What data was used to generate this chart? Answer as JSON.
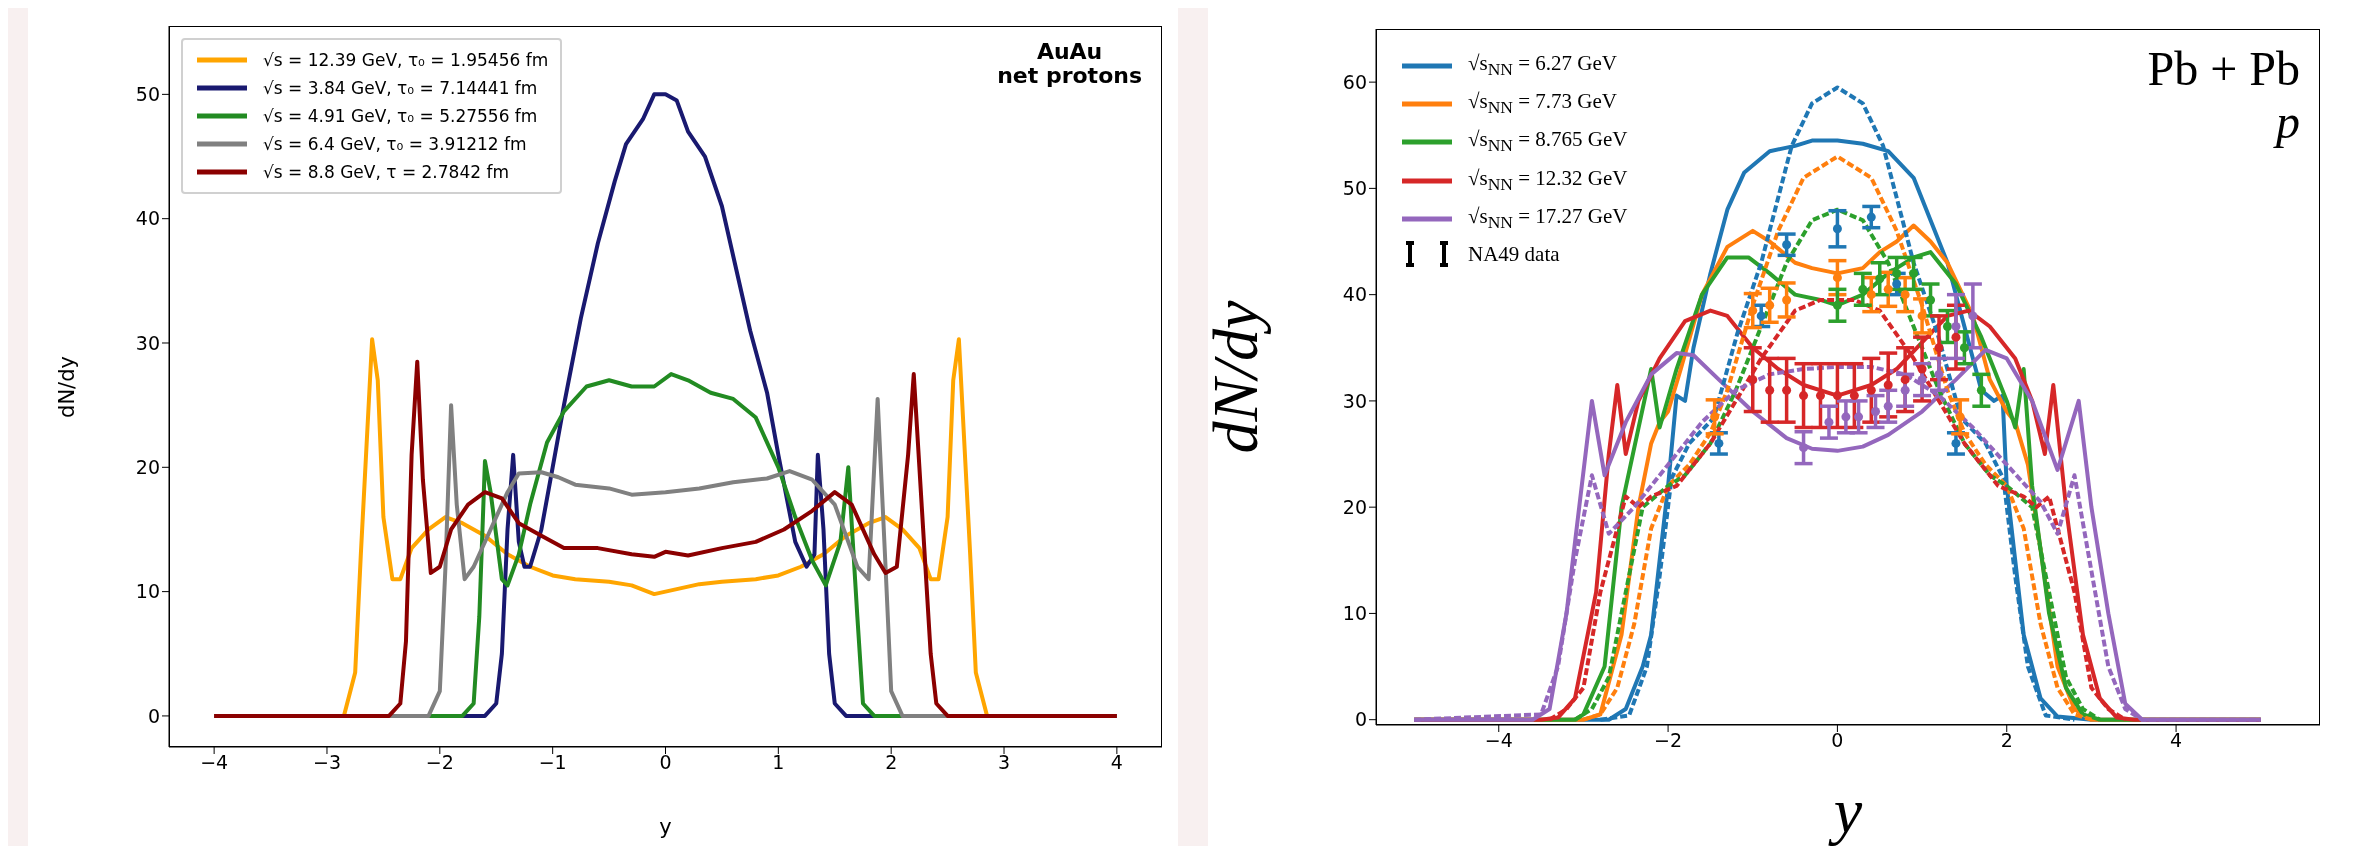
{
  "chart_data": [
    {
      "type": "line",
      "xlabel": "y",
      "ylabel": "dN/dy",
      "xlim": [
        -4.4,
        4.4
      ],
      "ylim": [
        -2.5,
        55.5
      ],
      "xticks": [
        -4,
        -3,
        -2,
        -1,
        0,
        1,
        2,
        3,
        4
      ],
      "yticks": [
        0,
        10,
        20,
        30,
        40,
        50
      ],
      "grid": false,
      "legend": "top left",
      "marker": "none",
      "line_style": "solid",
      "annotations": [
        "AuAu",
        "net protons"
      ],
      "series": [
        {
          "name": "√s = 12.39 GeV, τ₀ = 1.95456 fm",
          "color": "#ffa500",
          "x": [
            -4,
            -2.85,
            -2.75,
            -2.7,
            -2.6,
            -2.55,
            -2.5,
            -2.42,
            -2.35,
            -2.25,
            -2.1,
            -1.95,
            -1.8,
            -1.6,
            -1.4,
            -1.2,
            -1.0,
            -0.8,
            -0.5,
            -0.3,
            -0.1,
            0,
            0.1,
            0.3,
            0.5,
            0.8,
            1.0,
            1.2,
            1.4,
            1.6,
            1.8,
            1.95,
            2.1,
            2.25,
            2.35,
            2.42,
            2.5,
            2.55,
            2.6,
            2.7,
            2.75,
            2.85,
            4
          ],
          "values": [
            0,
            0,
            3.5,
            13,
            30.3,
            27,
            16,
            11,
            11,
            13.5,
            15,
            16,
            15.5,
            14.5,
            13,
            12,
            11.3,
            11,
            10.8,
            10.5,
            9.8,
            10,
            10.2,
            10.6,
            10.8,
            11,
            11.3,
            12,
            13,
            14.5,
            15.5,
            16,
            15,
            13.5,
            11,
            11,
            16,
            27,
            30.3,
            13,
            3.5,
            0,
            0
          ]
        },
        {
          "name": "√s = 3.84 GeV, τ₀ = 7.14441 fm",
          "color": "#191970",
          "x": [
            -4,
            -1.6,
            -1.5,
            -1.45,
            -1.4,
            -1.35,
            -1.3,
            -1.25,
            -1.2,
            -1.1,
            -1.0,
            -0.9,
            -0.75,
            -0.6,
            -0.45,
            -0.35,
            -0.2,
            -0.1,
            0,
            0.1,
            0.2,
            0.35,
            0.5,
            0.6,
            0.75,
            0.9,
            1.0,
            1.15,
            1.25,
            1.32,
            1.35,
            1.4,
            1.45,
            1.5,
            1.6,
            4
          ],
          "values": [
            0,
            0,
            1,
            5,
            15,
            21,
            14,
            12,
            12,
            15,
            20,
            25,
            32,
            38,
            43,
            46,
            48,
            50,
            50,
            49.5,
            47,
            45,
            41,
            37,
            31,
            26,
            21,
            14,
            12,
            13,
            21,
            15,
            5,
            1,
            0,
            0
          ]
        },
        {
          "name": "√s = 4.91 GeV, τ₀ = 5.27556 fm",
          "color": "#228b22",
          "x": [
            -4,
            -1.8,
            -1.7,
            -1.65,
            -1.6,
            -1.55,
            -1.45,
            -1.4,
            -1.3,
            -1.2,
            -1.05,
            -0.9,
            -0.7,
            -0.5,
            -0.3,
            -0.1,
            0.05,
            0.2,
            0.4,
            0.6,
            0.8,
            1.0,
            1.15,
            1.3,
            1.42,
            1.55,
            1.62,
            1.7,
            1.75,
            1.85,
            4
          ],
          "values": [
            0,
            0,
            1,
            8,
            20.5,
            18,
            11,
            10.5,
            13,
            17,
            22,
            24.5,
            26.5,
            27,
            26.5,
            26.5,
            27.5,
            27,
            26,
            25.5,
            24,
            20,
            16,
            12.5,
            10.5,
            14,
            20,
            8,
            1,
            0,
            0
          ]
        },
        {
          "name": "√s = 6.4 GeV, τ₀ = 3.91212 fm",
          "color": "#808080",
          "x": [
            -4,
            -2.1,
            -2.0,
            -1.95,
            -1.9,
            -1.85,
            -1.78,
            -1.7,
            -1.55,
            -1.4,
            -1.3,
            -1.1,
            -0.95,
            -0.8,
            -0.5,
            -0.3,
            0,
            0.3,
            0.6,
            0.9,
            1.1,
            1.3,
            1.5,
            1.7,
            1.8,
            1.88,
            1.95,
            2.0,
            2.1,
            4
          ],
          "values": [
            0,
            0,
            2,
            12,
            25,
            17,
            11,
            12,
            15,
            18,
            19.5,
            19.6,
            19.2,
            18.6,
            18.3,
            17.8,
            18,
            18.3,
            18.8,
            19.1,
            19.7,
            19,
            17,
            12,
            11,
            25.5,
            12,
            2,
            0,
            0
          ]
        },
        {
          "name": "√s = 8.8 GeV, τ = 2.7842 fm",
          "color": "#8b0000",
          "x": [
            -4,
            -2.45,
            -2.35,
            -2.3,
            -2.25,
            -2.2,
            -2.15,
            -2.08,
            -2.0,
            -1.9,
            -1.75,
            -1.6,
            -1.45,
            -1.3,
            -1.1,
            -0.9,
            -0.6,
            -0.3,
            -0.1,
            0,
            0.2,
            0.5,
            0.8,
            1.05,
            1.3,
            1.5,
            1.65,
            1.85,
            1.95,
            2.05,
            2.15,
            2.2,
            2.25,
            2.35,
            2.4,
            2.5,
            4
          ],
          "values": [
            0,
            0,
            1,
            6,
            21,
            28.5,
            19,
            11.5,
            12,
            15,
            17,
            18,
            17.5,
            15.5,
            14.5,
            13.5,
            13.5,
            13,
            12.8,
            13.2,
            12.9,
            13.5,
            14,
            15,
            16.5,
            18,
            17,
            13,
            11.5,
            12,
            21,
            27.5,
            20,
            5,
            1,
            0,
            0
          ]
        }
      ]
    },
    {
      "type": "line",
      "xlabel": "y",
      "ylabel": "dN/dy",
      "xlim": [
        -5.45,
        5.7
      ],
      "ylim": [
        -0.5,
        65
      ],
      "xticks": [
        -4,
        -2,
        0,
        2,
        4
      ],
      "yticks": [
        0,
        10,
        20,
        30,
        40,
        50,
        60
      ],
      "grid": false,
      "legend": "top left",
      "marker": "none",
      "line_style": "solid",
      "annotations": [
        "Pb + Pb",
        "p",
        "NA49 data"
      ],
      "series": [
        {
          "name": "√s$_{NN}$ = 6.27 GeV",
          "color": "#1f77b4",
          "x": [
            -5,
            -2.7,
            -2.5,
            -2.3,
            -2.2,
            -2.0,
            -1.9,
            -1.8,
            -1.7,
            -1.5,
            -1.3,
            -1.1,
            -0.8,
            -0.5,
            -0.3,
            0,
            0.3,
            0.6,
            0.9,
            1.1,
            1.3,
            1.5,
            1.7,
            1.85,
            1.95,
            2.0,
            2.2,
            2.4,
            2.6,
            3,
            5
          ],
          "values": [
            0,
            0,
            1,
            5,
            8,
            22,
            30.5,
            30,
            35,
            42,
            48,
            51.5,
            53.5,
            54,
            54.5,
            54.5,
            54.2,
            53.5,
            51,
            47,
            43,
            37,
            31,
            30,
            30.5,
            22,
            8,
            2,
            0.3,
            0,
            0
          ]
        },
        {
          "name": "√s$_{NN}$ = 7.73 GeV",
          "color": "#ff7f0e",
          "x": [
            -5,
            -3.0,
            -2.8,
            -2.55,
            -2.35,
            -2.2,
            -2.1,
            -2.0,
            -1.85,
            -1.6,
            -1.3,
            -1.0,
            -0.8,
            -0.5,
            -0.3,
            0,
            0.3,
            0.5,
            0.7,
            0.9,
            1.1,
            1.3,
            1.6,
            1.8,
            2.0,
            2.1,
            2.25,
            2.4,
            2.6,
            2.8,
            3.0,
            5
          ],
          "values": [
            0,
            0,
            0.5,
            8,
            20,
            26,
            28,
            29,
            33,
            40,
            44.5,
            46,
            45,
            43,
            42.5,
            42,
            42.5,
            44,
            45,
            46.5,
            45,
            43,
            38,
            32,
            29,
            28,
            24,
            16,
            5,
            1,
            0,
            0
          ]
        },
        {
          "name": "√s$_{NN}$ = 8.765 GeV",
          "color": "#2ca02c",
          "x": [
            -5,
            -3.1,
            -3.0,
            -2.75,
            -2.55,
            -2.2,
            -2.1,
            -1.9,
            -1.6,
            -1.3,
            -1.05,
            -0.8,
            -0.5,
            -0.2,
            0,
            0.3,
            0.6,
            0.9,
            1.1,
            1.4,
            1.7,
            2.0,
            2.1,
            2.2,
            2.3,
            2.5,
            2.7,
            2.9,
            3.1,
            5
          ],
          "values": [
            0,
            0,
            0.5,
            5,
            20,
            33,
            27.5,
            33,
            40,
            43.5,
            43.5,
            42,
            40,
            39.5,
            39,
            40,
            42,
            43.5,
            44,
            41,
            36,
            30,
            27.5,
            33,
            22,
            10,
            3,
            0.5,
            0,
            0
          ]
        },
        {
          "name": "√s$_{NN}$ = 12.32 GeV",
          "color": "#d62728",
          "x": [
            -5,
            -3.5,
            -3.3,
            -3.1,
            -2.85,
            -2.7,
            -2.6,
            -2.5,
            -2.35,
            -2.1,
            -1.8,
            -1.5,
            -1.3,
            -1.0,
            -0.7,
            -0.4,
            0,
            0.4,
            0.7,
            1.0,
            1.3,
            1.55,
            1.8,
            2.1,
            2.3,
            2.45,
            2.55,
            2.7,
            2.9,
            3.1,
            3.3,
            3.5,
            5
          ],
          "values": [
            0,
            0,
            0.2,
            2,
            12,
            25,
            31.5,
            25,
            30,
            34,
            37.5,
            38.5,
            38,
            35,
            33,
            31.5,
            30.5,
            31.5,
            33,
            35.5,
            38,
            38.5,
            37,
            34,
            30,
            25,
            31.5,
            20,
            8,
            2,
            0.2,
            0,
            0
          ]
        },
        {
          "name": "√s$_{NN}$ = 17.27 GeV",
          "color": "#9467bd",
          "x": [
            -5,
            -3.6,
            -3.4,
            -3.2,
            -3.05,
            -2.9,
            -2.75,
            -2.5,
            -2.2,
            -1.9,
            -1.7,
            -1.4,
            -1.0,
            -0.6,
            -0.3,
            0,
            0.3,
            0.6,
            1.0,
            1.4,
            1.75,
            2.0,
            2.3,
            2.6,
            2.85,
            3.0,
            3.2,
            3.4,
            3.6,
            5
          ],
          "values": [
            0,
            0,
            1,
            10,
            20,
            30,
            23,
            28,
            32.5,
            34.5,
            34.3,
            32,
            29,
            26.5,
            25.5,
            25.3,
            25.7,
            26.8,
            29,
            32,
            34.8,
            34,
            30,
            23.5,
            30,
            20,
            10,
            1.5,
            0,
            0
          ]
        },
        {
          "color": "#1f77b4",
          "line_style": "dashed",
          "x": [
            -2.8,
            -2.46,
            -2.25,
            -2.1,
            -1.96,
            -1.75,
            -1.46,
            -1.18,
            -0.9,
            -0.54,
            -0.3,
            0,
            0.3,
            0.54,
            0.9,
            1.18,
            1.46,
            1.75,
            1.96,
            2.1,
            2.25,
            2.46,
            2.8
          ],
          "values": [
            0,
            0.4,
            5,
            13.5,
            22.7,
            26,
            28.4,
            36.4,
            43,
            54,
            58,
            59.5,
            58,
            54,
            43,
            36.4,
            28.4,
            26,
            22.7,
            13.5,
            5,
            0.4,
            0
          ]
        },
        {
          "color": "#ff7f0e",
          "line_style": "dashed",
          "x": [
            -3,
            -2.8,
            -2.6,
            -2.4,
            -2.2,
            -2.0,
            -1.75,
            -1.5,
            -1.3,
            -1.0,
            -0.7,
            -0.4,
            0,
            0.4,
            0.7,
            1.0,
            1.3,
            1.5,
            1.75,
            2.0,
            2.2,
            2.4,
            2.6,
            2.8,
            3
          ],
          "values": [
            0,
            0.5,
            3,
            9,
            18,
            22,
            24,
            27,
            31,
            39,
            46,
            51,
            53,
            51,
            46,
            39,
            31,
            27,
            24,
            22,
            18,
            9,
            3,
            0.5,
            0
          ]
        },
        {
          "color": "#2ca02c",
          "line_style": "dashed",
          "x": [
            -3.1,
            -2.9,
            -2.7,
            -2.5,
            -2.3,
            -2.0,
            -1.8,
            -1.5,
            -1.2,
            -0.9,
            -0.6,
            -0.3,
            0,
            0.3,
            0.6,
            0.9,
            1.2,
            1.5,
            1.8,
            2.0,
            2.3,
            2.5,
            2.7,
            2.9,
            3.1
          ],
          "values": [
            0,
            1,
            4,
            12,
            20,
            22,
            23,
            26,
            31,
            37,
            43,
            47,
            48,
            47,
            43,
            37,
            31,
            26,
            23,
            22,
            20,
            12,
            4,
            1,
            0
          ]
        },
        {
          "color": "#d62728",
          "line_style": "dashed",
          "x": [
            -3.4,
            -3.2,
            -3.0,
            -2.8,
            -2.5,
            -2.35,
            -2.2,
            -1.9,
            -1.5,
            -1.2,
            -0.9,
            -0.5,
            -0.2,
            0,
            0.2,
            0.5,
            0.9,
            1.2,
            1.5,
            1.9,
            2.2,
            2.35,
            2.5,
            2.8,
            3.0,
            3.2,
            3.4
          ],
          "values": [
            0,
            1,
            3,
            12,
            21,
            20,
            21,
            22,
            26,
            30,
            34,
            38.5,
            39.5,
            39.5,
            39.5,
            38.5,
            34,
            30,
            26,
            22,
            21,
            20,
            21,
            12,
            3,
            1,
            0
          ]
        },
        {
          "color": "#9467bd",
          "line_style": "dashed",
          "x": [
            -5,
            -3.5,
            -3.3,
            -3.1,
            -2.9,
            -2.7,
            -2.4,
            -2.0,
            -1.6,
            -1.2,
            -0.8,
            -0.4,
            0,
            0.4,
            0.8,
            1.2,
            1.6,
            2.0,
            2.4,
            2.6,
            2.8,
            3.0,
            3.2,
            3.4,
            3.6,
            5
          ],
          "values": [
            0,
            0.5,
            5,
            15,
            23,
            17.5,
            20,
            24,
            28,
            31,
            32.5,
            33,
            33.2,
            33.2,
            32.5,
            30.5,
            27.5,
            24,
            20.5,
            17.5,
            23,
            14,
            5,
            1,
            0,
            0
          ]
        },
        {
          "type": "scatter",
          "color": "#1f77b4",
          "marker": "circle",
          "x": [
            -1.4,
            -0.9,
            -0.6,
            0,
            0.4,
            0.7,
            1.4
          ],
          "values": [
            26,
            38,
            44.7,
            46.2,
            47.3,
            41,
            26
          ],
          "errors": [
            1,
            1,
            1,
            1.7,
            1,
            1,
            1
          ]
        },
        {
          "type": "scatter",
          "color": "#ff7f0e",
          "marker": "circle",
          "x": [
            -1.45,
            -1.0,
            -0.8,
            -0.6,
            0,
            0.4,
            0.6,
            0.8,
            1.0,
            1.45
          ],
          "values": [
            28.5,
            38.5,
            39,
            39.5,
            41.6,
            40,
            40.5,
            40,
            38,
            28.5
          ],
          "errors": [
            1.6,
            1.6,
            1.6,
            1.6,
            1.6,
            1.6,
            1.6,
            1.6,
            1.6,
            1.6
          ]
        },
        {
          "type": "scatter",
          "color": "#2ca02c",
          "marker": "circle",
          "x": [
            0,
            0.3,
            0.5,
            0.7,
            0.9,
            1.1,
            1.3,
            1.5,
            1.7
          ],
          "values": [
            39,
            40.5,
            41.5,
            42,
            42,
            39.5,
            37,
            35,
            31
          ],
          "errors": [
            1.5,
            1.5,
            1.5,
            1.5,
            1.5,
            1.5,
            1.5,
            1.5,
            1.5
          ]
        },
        {
          "type": "scatter",
          "color": "#d62728",
          "marker": "circle",
          "x": [
            -1.0,
            -0.8,
            -0.6,
            -0.4,
            -0.2,
            0,
            0.2,
            0.4,
            0.6,
            0.8,
            1.0,
            1.2,
            1.4
          ],
          "values": [
            32,
            31,
            31,
            30.5,
            30.5,
            30.5,
            30.5,
            31,
            31.5,
            32,
            33,
            35,
            36
          ],
          "errors": [
            3,
            3,
            3,
            3,
            3,
            3,
            3,
            3,
            3,
            3,
            3,
            3,
            3
          ]
        },
        {
          "type": "scatter",
          "color": "#9467bd",
          "marker": "circle",
          "x": [
            -0.4,
            -0.1,
            0.1,
            0.25,
            0.45,
            0.6,
            0.8,
            1.0,
            1.2,
            1.4,
            1.6
          ],
          "values": [
            25.6,
            28,
            28.5,
            28.5,
            29,
            29.5,
            31,
            32,
            32.5,
            37,
            38
          ],
          "errors": [
            1.5,
            1.5,
            1.5,
            1.5,
            1.5,
            1.5,
            1.5,
            1.5,
            1.5,
            3,
            3
          ]
        }
      ]
    }
  ]
}
